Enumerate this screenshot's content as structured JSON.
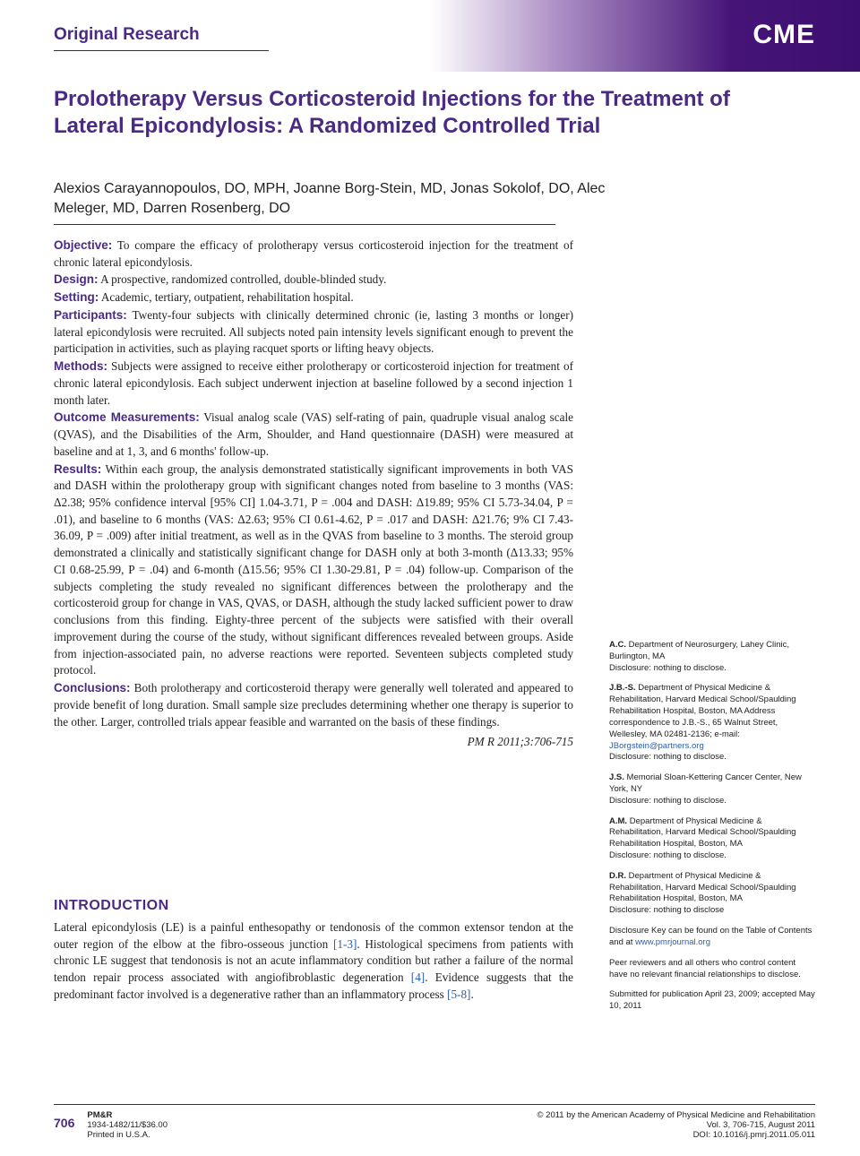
{
  "banner": {
    "section_label": "Original Research",
    "cme_badge": "CME"
  },
  "article": {
    "title": "Prolotherapy Versus Corticosteroid Injections for the Treatment of Lateral Epicondylosis: A Randomized Controlled Trial",
    "authors": "Alexios Carayannopoulos, DO, MPH, Joanne Borg-Stein, MD, Jonas Sokolof, DO, Alec Meleger, MD, Darren Rosenberg, DO"
  },
  "abstract": {
    "objective_label": "Objective:",
    "objective": " To compare the efficacy of prolotherapy versus corticosteroid injection for the treatment of chronic lateral epicondylosis.",
    "design_label": "Design:",
    "design": " A prospective, randomized controlled, double-blinded study.",
    "setting_label": "Setting:",
    "setting": " Academic, tertiary, outpatient, rehabilitation hospital.",
    "participants_label": "Participants:",
    "participants": " Twenty-four subjects with clinically determined chronic (ie, lasting 3 months or longer) lateral epicondylosis were recruited. All subjects noted pain intensity levels significant enough to prevent the participation in activities, such as playing racquet sports or lifting heavy objects.",
    "methods_label": "Methods:",
    "methods": " Subjects were assigned to receive either prolotherapy or corticosteroid injection for treatment of chronic lateral epicondylosis. Each subject underwent injection at baseline followed by a second injection 1 month later.",
    "outcome_label": "Outcome Measurements:",
    "outcome": " Visual analog scale (VAS) self-rating of pain, quadruple visual analog scale (QVAS), and the Disabilities of the Arm, Shoulder, and Hand questionnaire (DASH) were measured at baseline and at 1, 3, and 6 months' follow-up.",
    "results_label": "Results:",
    "results": " Within each group, the analysis demonstrated statistically significant improvements in both VAS and DASH within the prolotherapy group with significant changes noted from baseline to 3 months (VAS: Δ2.38; 95% confidence interval [95% CI] 1.04-3.71, P = .004 and DASH: Δ19.89; 95% CI 5.73-34.04, P = .01), and baseline to 6 months (VAS: Δ2.63; 95% CI 0.61-4.62, P = .017 and DASH: Δ21.76; 9% CI 7.43-36.09, P = .009) after initial treatment, as well as in the QVAS from baseline to 3 months. The steroid group demonstrated a clinically and statistically significant change for DASH only at both 3-month (Δ13.33; 95% CI 0.68-25.99, P = .04) and 6-month (Δ15.56; 95% CI 1.30-29.81, P = .04) follow-up. Comparison of the subjects completing the study revealed no significant differences between the prolotherapy and the corticosteroid group for change in VAS, QVAS, or DASH, although the study lacked sufficient power to draw conclusions from this finding. Eighty-three percent of the subjects were satisfied with their overall improvement during the course of the study, without significant differences revealed between groups. Aside from injection-associated pain, no adverse reactions were reported. Seventeen subjects completed study protocol.",
    "conclusions_label": "Conclusions:",
    "conclusions": " Both prolotherapy and corticosteroid therapy were generally well tolerated and appeared to provide benefit of long duration. Small sample size precludes determining whether one therapy is superior to the other. Larger, controlled trials appear feasible and warranted on the basis of these findings.",
    "citation": "PM R 2011;3:706-715"
  },
  "intro": {
    "heading": "INTRODUCTION",
    "para1a": "Lateral epicondylosis (LE) is a painful enthesopathy or tendonosis of the common extensor tendon at the outer region of the elbow at the fibro-osseous junction ",
    "ref1": "[1-3]",
    "para1b": ". Histological specimens from patients with chronic LE suggest that tendonosis is not an acute inflammatory condition but rather a failure of the normal tendon repair process associated with angiofibroblastic degeneration ",
    "ref2": "[4]",
    "para1c": ". Evidence suggests that the predominant factor involved is a degenerative rather than an inflammatory process ",
    "ref3": "[5-8]",
    "para1d": "."
  },
  "sidebar": {
    "ac_init": "A.C.",
    "ac_text": " Department of Neurosurgery, Lahey Clinic, Burlington, MA",
    "ac_disc": "Disclosure: nothing to disclose.",
    "jbs_init": "J.B.-S.",
    "jbs_text": " Department of Physical Medicine & Rehabilitation, Harvard Medical School/Spaulding Rehabilitation Hospital, Boston, MA Address correspondence to J.B.-S., 65 Walnut Street, Wellesley, MA 02481-2136; e-mail: ",
    "jbs_email": "JBorgstein@partners.org",
    "jbs_disc": "Disclosure: nothing to disclose.",
    "js_init": "J.S.",
    "js_text": " Memorial Sloan-Kettering Cancer Center, New York, NY",
    "js_disc": "Disclosure: nothing to disclose.",
    "am_init": "A.M.",
    "am_text": " Department of Physical Medicine & Rehabilitation, Harvard Medical School/Spaulding Rehabilitation Hospital, Boston, MA",
    "am_disc": "Disclosure: nothing to disclose.",
    "dr_init": "D.R.",
    "dr_text": " Department of Physical Medicine & Rehabilitation, Harvard Medical School/Spaulding Rehabilitation Hospital, Boston, MA",
    "dr_disc": "Disclosure: nothing to disclose",
    "key_text": "Disclosure Key can be found on the Table of Contents and at ",
    "key_url": "www.pmrjournal.org",
    "peer_text": "Peer reviewers and all others who control content have no relevant financial relationships to disclose.",
    "submitted": "Submitted for publication April 23, 2009; accepted May 10, 2011"
  },
  "footer": {
    "page_number": "706",
    "journal": "PM&R",
    "issn": "1934-1482/11/$36.00",
    "printed": "Printed in U.S.A.",
    "copyright": "© 2011 by the American Academy of Physical Medicine and Rehabilitation",
    "vol": "Vol. 3, 706-715, August 2011",
    "doi": "DOI: 10.1016/j.pmrj.2011.05.011"
  },
  "colors": {
    "purple": "#4b2a85",
    "link": "#2a5db0",
    "text": "#222222",
    "background": "#ffffff"
  },
  "typography": {
    "title_fontsize": 24,
    "body_fontsize": 13.2,
    "sidebar_fontsize": 9.5,
    "footer_fontsize": 9.5
  }
}
